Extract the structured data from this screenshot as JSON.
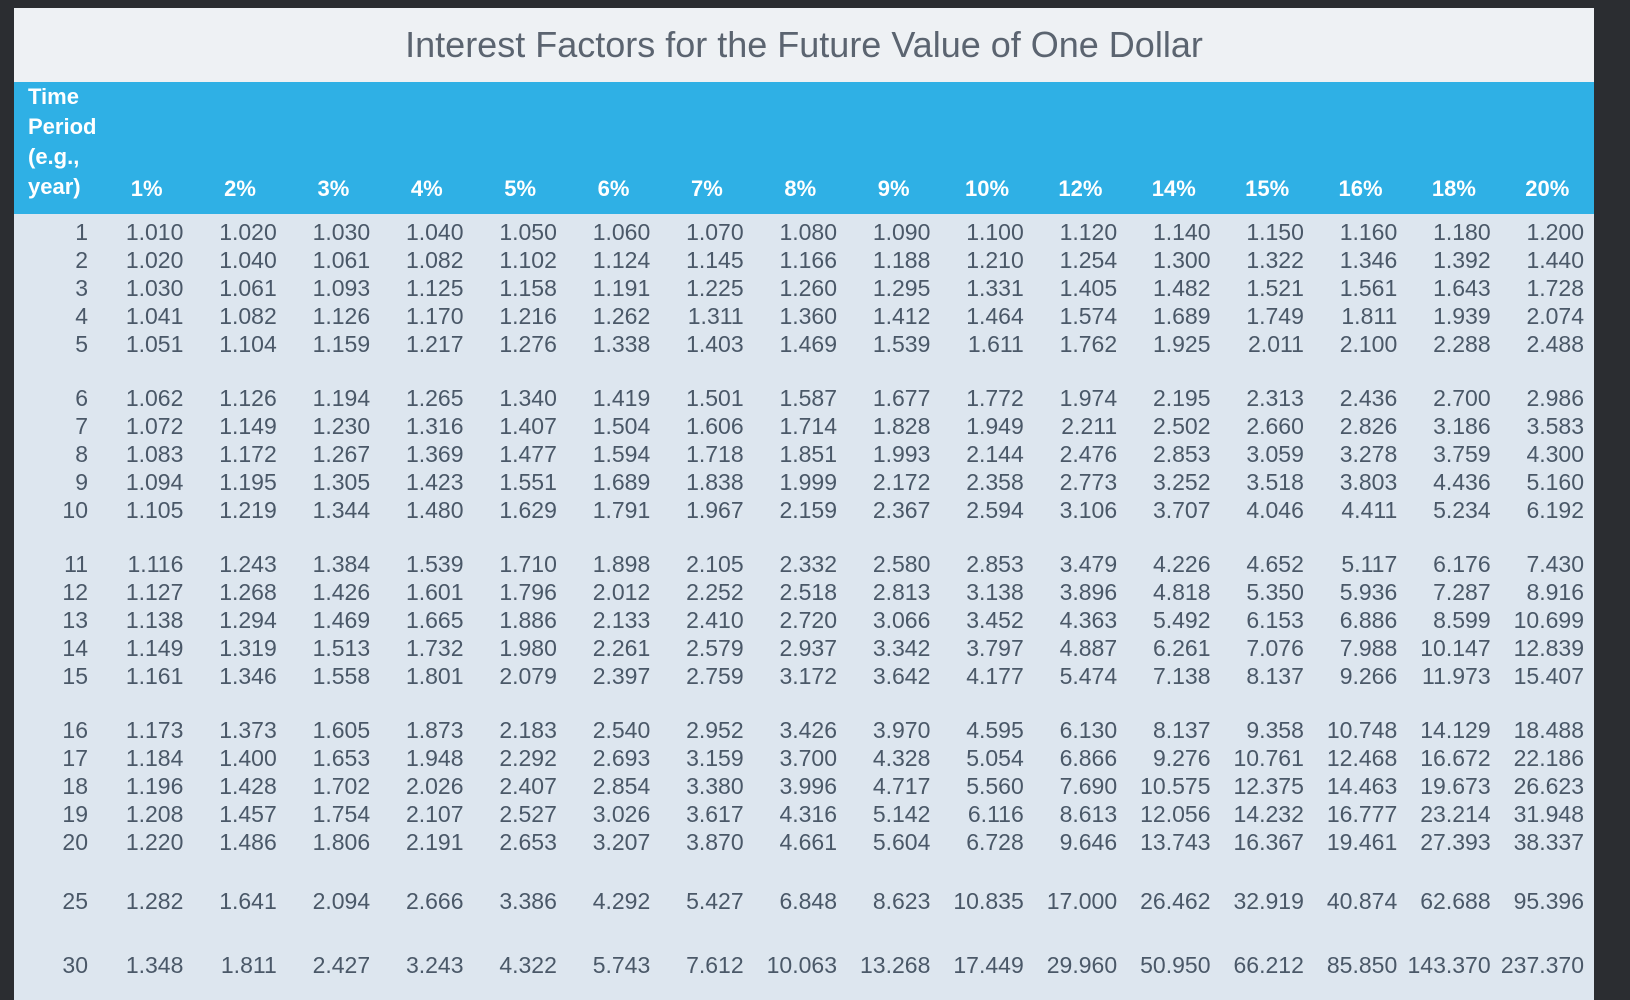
{
  "title": "Interest Factors for the Future Value of One Dollar",
  "header": {
    "period_label": [
      "Time",
      "Period",
      "(e.g.,",
      "year)"
    ],
    "rates": [
      "1%",
      "2%",
      "3%",
      "4%",
      "5%",
      "6%",
      "7%",
      "8%",
      "9%",
      "10%",
      "12%",
      "14%",
      "15%",
      "16%",
      "18%",
      "20%"
    ]
  },
  "rows": [
    {
      "period": "1",
      "values": [
        "1.010",
        "1.020",
        "1.030",
        "1.040",
        "1.050",
        "1.060",
        "1.070",
        "1.080",
        "1.090",
        "1.100",
        "1.120",
        "1.140",
        "1.150",
        "1.160",
        "1.180",
        "1.200"
      ]
    },
    {
      "period": "2",
      "values": [
        "1.020",
        "1.040",
        "1.061",
        "1.082",
        "1.102",
        "1.124",
        "1.145",
        "1.166",
        "1.188",
        "1.210",
        "1.254",
        "1.300",
        "1.322",
        "1.346",
        "1.392",
        "1.440"
      ]
    },
    {
      "period": "3",
      "values": [
        "1.030",
        "1.061",
        "1.093",
        "1.125",
        "1.158",
        "1.191",
        "1.225",
        "1.260",
        "1.295",
        "1.331",
        "1.405",
        "1.482",
        "1.521",
        "1.561",
        "1.643",
        "1.728"
      ]
    },
    {
      "period": "4",
      "values": [
        "1.041",
        "1.082",
        "1.126",
        "1.170",
        "1.216",
        "1.262",
        "1.311",
        "1.360",
        "1.412",
        "1.464",
        "1.574",
        "1.689",
        "1.749",
        "1.811",
        "1.939",
        "2.074"
      ]
    },
    {
      "period": "5",
      "values": [
        "1.051",
        "1.104",
        "1.159",
        "1.217",
        "1.276",
        "1.338",
        "1.403",
        "1.469",
        "1.539",
        "1.611",
        "1.762",
        "1.925",
        "2.011",
        "2.100",
        "2.288",
        "2.488"
      ]
    },
    {
      "period": "6",
      "values": [
        "1.062",
        "1.126",
        "1.194",
        "1.265",
        "1.340",
        "1.419",
        "1.501",
        "1.587",
        "1.677",
        "1.772",
        "1.974",
        "2.195",
        "2.313",
        "2.436",
        "2.700",
        "2.986"
      ]
    },
    {
      "period": "7",
      "values": [
        "1.072",
        "1.149",
        "1.230",
        "1.316",
        "1.407",
        "1.504",
        "1.606",
        "1.714",
        "1.828",
        "1.949",
        "2.211",
        "2.502",
        "2.660",
        "2.826",
        "3.186",
        "3.583"
      ]
    },
    {
      "period": "8",
      "values": [
        "1.083",
        "1.172",
        "1.267",
        "1.369",
        "1.477",
        "1.594",
        "1.718",
        "1.851",
        "1.993",
        "2.144",
        "2.476",
        "2.853",
        "3.059",
        "3.278",
        "3.759",
        "4.300"
      ]
    },
    {
      "period": "9",
      "values": [
        "1.094",
        "1.195",
        "1.305",
        "1.423",
        "1.551",
        "1.689",
        "1.838",
        "1.999",
        "2.172",
        "2.358",
        "2.773",
        "3.252",
        "3.518",
        "3.803",
        "4.436",
        "5.160"
      ]
    },
    {
      "period": "10",
      "values": [
        "1.105",
        "1.219",
        "1.344",
        "1.480",
        "1.629",
        "1.791",
        "1.967",
        "2.159",
        "2.367",
        "2.594",
        "3.106",
        "3.707",
        "4.046",
        "4.411",
        "5.234",
        "6.192"
      ]
    },
    {
      "period": "11",
      "values": [
        "1.116",
        "1.243",
        "1.384",
        "1.539",
        "1.710",
        "1.898",
        "2.105",
        "2.332",
        "2.580",
        "2.853",
        "3.479",
        "4.226",
        "4.652",
        "5.117",
        "6.176",
        "7.430"
      ]
    },
    {
      "period": "12",
      "values": [
        "1.127",
        "1.268",
        "1.426",
        "1.601",
        "1.796",
        "2.012",
        "2.252",
        "2.518",
        "2.813",
        "3.138",
        "3.896",
        "4.818",
        "5.350",
        "5.936",
        "7.287",
        "8.916"
      ]
    },
    {
      "period": "13",
      "values": [
        "1.138",
        "1.294",
        "1.469",
        "1.665",
        "1.886",
        "2.133",
        "2.410",
        "2.720",
        "3.066",
        "3.452",
        "4.363",
        "5.492",
        "6.153",
        "6.886",
        "8.599",
        "10.699"
      ]
    },
    {
      "period": "14",
      "values": [
        "1.149",
        "1.319",
        "1.513",
        "1.732",
        "1.980",
        "2.261",
        "2.579",
        "2.937",
        "3.342",
        "3.797",
        "4.887",
        "6.261",
        "7.076",
        "7.988",
        "10.147",
        "12.839"
      ]
    },
    {
      "period": "15",
      "values": [
        "1.161",
        "1.346",
        "1.558",
        "1.801",
        "2.079",
        "2.397",
        "2.759",
        "3.172",
        "3.642",
        "4.177",
        "5.474",
        "7.138",
        "8.137",
        "9.266",
        "11.973",
        "15.407"
      ]
    },
    {
      "period": "16",
      "values": [
        "1.173",
        "1.373",
        "1.605",
        "1.873",
        "2.183",
        "2.540",
        "2.952",
        "3.426",
        "3.970",
        "4.595",
        "6.130",
        "8.137",
        "9.358",
        "10.748",
        "14.129",
        "18.488"
      ]
    },
    {
      "period": "17",
      "values": [
        "1.184",
        "1.400",
        "1.653",
        "1.948",
        "2.292",
        "2.693",
        "3.159",
        "3.700",
        "4.328",
        "5.054",
        "6.866",
        "9.276",
        "10.761",
        "12.468",
        "16.672",
        "22.186"
      ]
    },
    {
      "period": "18",
      "values": [
        "1.196",
        "1.428",
        "1.702",
        "2.026",
        "2.407",
        "2.854",
        "3.380",
        "3.996",
        "4.717",
        "5.560",
        "7.690",
        "10.575",
        "12.375",
        "14.463",
        "19.673",
        "26.623"
      ]
    },
    {
      "period": "19",
      "values": [
        "1.208",
        "1.457",
        "1.754",
        "2.107",
        "2.527",
        "3.026",
        "3.617",
        "4.316",
        "5.142",
        "6.116",
        "8.613",
        "12.056",
        "14.232",
        "16.777",
        "23.214",
        "31.948"
      ]
    },
    {
      "period": "20",
      "values": [
        "1.220",
        "1.486",
        "1.806",
        "2.191",
        "2.653",
        "3.207",
        "3.870",
        "4.661",
        "5.604",
        "6.728",
        "9.646",
        "13.743",
        "16.367",
        "19.461",
        "27.393",
        "38.337"
      ]
    },
    {
      "period": "25",
      "values": [
        "1.282",
        "1.641",
        "2.094",
        "2.666",
        "3.386",
        "4.292",
        "5.427",
        "6.848",
        "8.623",
        "10.835",
        "17.000",
        "26.462",
        "32.919",
        "40.874",
        "62.688",
        "95.396"
      ]
    },
    {
      "period": "30",
      "values": [
        "1.348",
        "1.811",
        "2.427",
        "3.243",
        "4.322",
        "5.743",
        "7.612",
        "10.063",
        "13.268",
        "17.449",
        "29.960",
        "50.950",
        "66.212",
        "85.850",
        "143.370",
        "237.370"
      ]
    }
  ]
}
